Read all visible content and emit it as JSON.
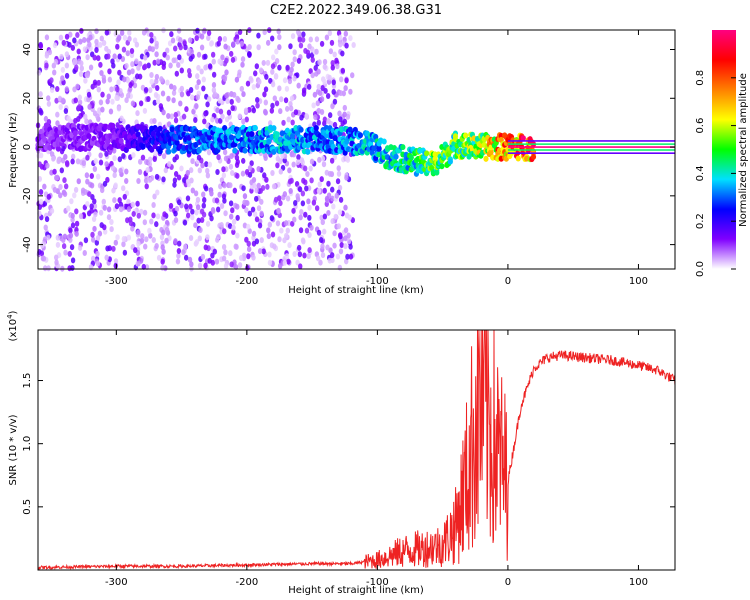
{
  "figure_title": "C2E2.2022.349.06.38.G31",
  "chart_data": [
    {
      "type": "heatmap",
      "name": "spectrogram",
      "xlabel": "Height of straight line (km)",
      "ylabel": "Frequency (Hz)",
      "xlim": [
        -360,
        128
      ],
      "ylim": [
        -50,
        48
      ],
      "xticks": [
        -300,
        -200,
        -100,
        0,
        100
      ],
      "xtick_labels": [
        "-300",
        "-200",
        "-100",
        "0",
        "100"
      ],
      "yticks": [
        -40,
        -20,
        0,
        20,
        40
      ],
      "ytick_labels": [
        "-40",
        "-20",
        "0",
        "20",
        "40"
      ],
      "colorbar": {
        "label": "Normalized spectral amplitude",
        "range": [
          0,
          1
        ],
        "ticks": [
          0.0,
          0.2,
          0.4,
          0.6,
          0.8
        ],
        "tick_labels": [
          "0.0",
          "0.2",
          "0.4",
          "0.6",
          "0.8"
        ],
        "colormap": [
          "#ffffff",
          "#8000ff",
          "#0000ff",
          "#00e0ff",
          "#00ff00",
          "#ffff00",
          "#ff8000",
          "#ff0000",
          "#ff0080"
        ]
      },
      "signal_track": [
        {
          "x": -360,
          "freq": 4,
          "amp": 0.12
        },
        {
          "x": -300,
          "freq": 4,
          "amp": 0.15
        },
        {
          "x": -260,
          "freq": 3,
          "amp": 0.3
        },
        {
          "x": -220,
          "freq": 3,
          "amp": 0.35
        },
        {
          "x": -180,
          "freq": 3,
          "amp": 0.4
        },
        {
          "x": -140,
          "freq": 3,
          "amp": 0.35
        },
        {
          "x": -110,
          "freq": 2,
          "amp": 0.4
        },
        {
          "x": -90,
          "freq": -4,
          "amp": 0.45
        },
        {
          "x": -70,
          "freq": -6,
          "amp": 0.5
        },
        {
          "x": -55,
          "freq": -7,
          "amp": 0.6
        },
        {
          "x": -40,
          "freq": 1,
          "amp": 0.55
        },
        {
          "x": -20,
          "freq": 0,
          "amp": 0.65
        },
        {
          "x": 0,
          "freq": 0,
          "amp": 0.9
        },
        {
          "x": 60,
          "freq": 0,
          "amp": 1.0
        },
        {
          "x": 128,
          "freq": 0,
          "amp": 1.0
        }
      ]
    },
    {
      "type": "line",
      "name": "snr",
      "xlabel": "Height of straight line (km)",
      "ylabel": "SNR (10 * v/v)",
      "y_multiplier": "(x10",
      "y_multiplier_exp": "4",
      "y_multiplier_close": ")",
      "xlim": [
        -360,
        128
      ],
      "ylim": [
        0,
        1.9
      ],
      "xticks": [
        -300,
        -200,
        -100,
        0,
        100
      ],
      "xtick_labels": [
        "-300",
        "-200",
        "-100",
        "0",
        "100"
      ],
      "yticks": [
        0.5,
        1.0,
        1.5
      ],
      "ytick_labels": [
        "0.5",
        "1.0",
        "1.5"
      ],
      "line_color": "#ee2222",
      "series": [
        {
          "name": "SNR",
          "x": [
            -360,
            -300,
            -250,
            -200,
            -150,
            -120,
            -100,
            -80,
            -60,
            -50,
            -40,
            -30,
            -25,
            -20,
            -10,
            0,
            10,
            20,
            30,
            40,
            60,
            80,
            100,
            115,
            128
          ],
          "y": [
            0.02,
            0.03,
            0.03,
            0.04,
            0.05,
            0.05,
            0.08,
            0.15,
            0.18,
            0.2,
            0.35,
            0.8,
            1.2,
            1.4,
            1.0,
            0.7,
            1.3,
            1.6,
            1.68,
            1.7,
            1.68,
            1.66,
            1.62,
            1.58,
            1.5
          ]
        }
      ]
    }
  ]
}
